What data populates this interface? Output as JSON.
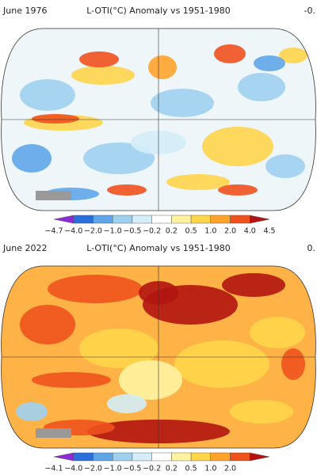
{
  "panels": [
    {
      "date": "June 1976",
      "title": "L-OTI(°C) Anomaly vs 1951-1980",
      "mean": "-0.",
      "colorbar_labels": [
        "−4.7",
        "−4.0",
        "−2.0",
        "−1.0",
        "−0.5",
        "−0.2",
        "0.2",
        "0.5",
        "1.0",
        "2.0",
        "4.0",
        "4.5"
      ]
    },
    {
      "date": "June 2022",
      "title": "L-OTI(°C) Anomaly vs 1951-1980",
      "mean": "0.",
      "colorbar_labels": [
        "−4.1",
        "−4.0",
        "−2.0",
        "−1.0",
        "−0.5",
        "−0.2",
        "0.2",
        "0.5",
        "1.0",
        "2.0"
      ]
    }
  ],
  "watermark": "ouest-france.fr"
}
